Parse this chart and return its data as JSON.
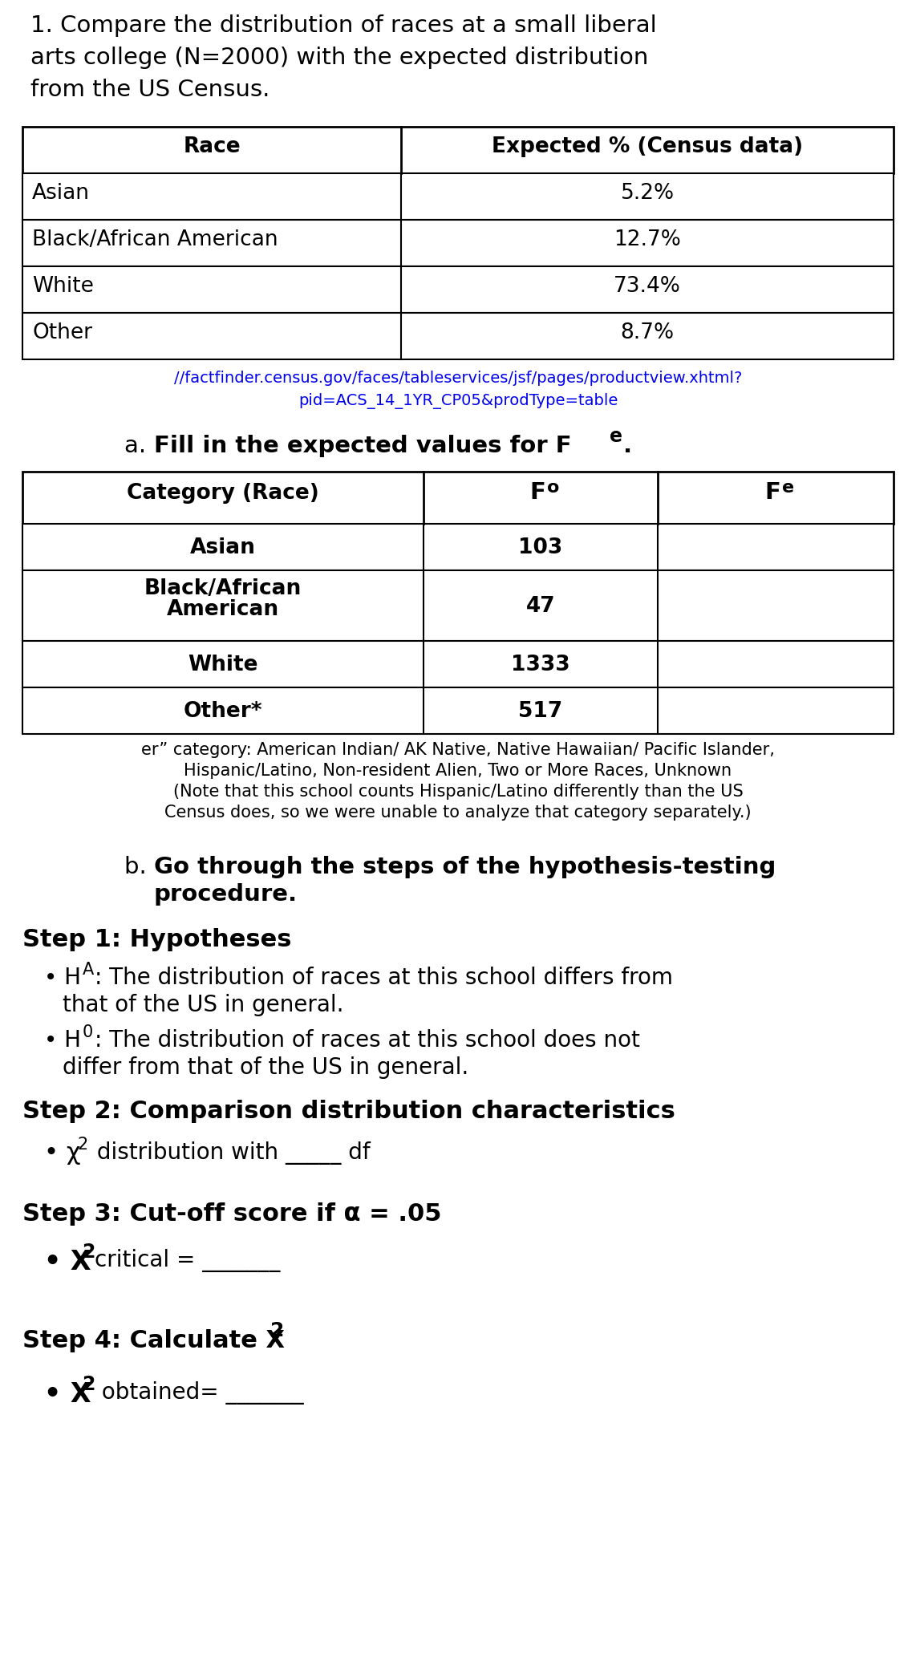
{
  "title_text1": "1. Compare the distribution of races at a small liberal",
  "title_text2": "arts college (N=2000) with the expected distribution",
  "title_text3": "from the US Census.",
  "table1_headers": [
    "Race",
    "Expected % (Census data)"
  ],
  "table1_rows": [
    [
      "Asian",
      "5.2%"
    ],
    [
      "Black/African American",
      "12.7%"
    ],
    [
      "White",
      "73.4%"
    ],
    [
      "Other",
      "8.7%"
    ]
  ],
  "url_line1": "//factfinder.census.gov/faces/tableservices/jsf/pages/productview.xhtml?",
  "url_line2": "pid=ACS_14_1YR_CP05&prodType=table",
  "table2_rows_cat": [
    "Asian",
    "Black/African\nAmerican",
    "White",
    "Other*"
  ],
  "table2_rows_fo": [
    "103",
    "47",
    "1333",
    "517"
  ],
  "footnote_lines": [
    "er” category: American Indian/ AK Native, Native Hawaiian/ Pacific Islander,",
    "Hispanic/Latino, Non-resident Alien, Two or More Races, Unknown",
    "(Note that this school counts Hispanic/Latino differently than the US",
    "Census does, so we were unable to analyze that category separately.)"
  ],
  "bg_color": "#ffffff",
  "link_color": "#0000EE"
}
